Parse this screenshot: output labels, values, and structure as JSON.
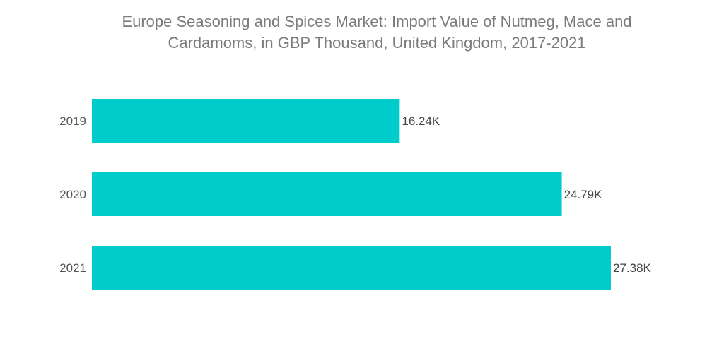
{
  "chart_data": {
    "type": "bar",
    "orientation": "horizontal",
    "title_lines": [
      "Europe Seasoning and Spices Market: Import Value of Nutmeg, Mace and",
      "Cardamoms, in GBP Thousand, United Kingdom, 2017-2021"
    ],
    "categories": [
      "2019",
      "2020",
      "2021"
    ],
    "values": [
      16.24,
      24.79,
      27.38
    ],
    "data_labels": [
      "16.24K",
      "24.79K",
      "27.38K"
    ],
    "xlim": [
      0,
      27.38
    ],
    "grid": false,
    "bar_color": "#00cccc"
  }
}
